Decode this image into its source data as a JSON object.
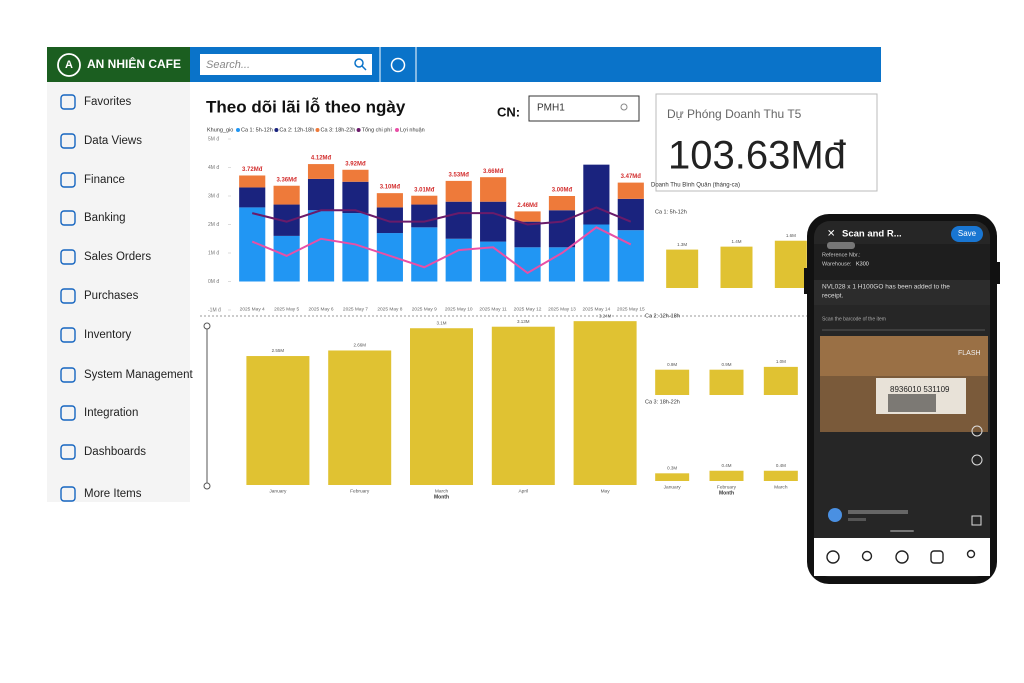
{
  "header": {
    "brand": "AN NHIÊN CAFE",
    "search_placeholder": "Search..."
  },
  "sidebar": [
    "Favorites",
    "Data Views",
    "Finance",
    "Banking",
    "Sales Orders",
    "Purchases",
    "Inventory",
    "System Management",
    "Integration",
    "Dashboards",
    "More Items"
  ],
  "dashboard": {
    "title": "Theo dõi lãi lỗ theo ngày",
    "branch_label": "CN:",
    "branch_value": "PMH1"
  },
  "card": {
    "title": "Dự Phóng Doanh Thu T5",
    "value": "103.63Mđ"
  },
  "chart_data": [
    {
      "type": "bar",
      "stacked": true,
      "legend_title": "Khung_gio",
      "categories": [
        "2025 May 4",
        "2025 May 5",
        "2025 May 6",
        "2025 May 7",
        "2025 May 8",
        "2025 May 9",
        "2025 May 10",
        "2025 May 11",
        "2025 May 12",
        "2025 May 13",
        "2025 May 14",
        "2025 May 15"
      ],
      "series": [
        {
          "name": "Ca 1: 5h-12h",
          "color": "#2196f3",
          "values": [
            2.6,
            1.6,
            2.5,
            2.4,
            1.7,
            1.9,
            1.5,
            1.4,
            1.2,
            1.2,
            2.0,
            1.8
          ]
        },
        {
          "name": "Ca 2: 12h-18h",
          "color": "#1a237e",
          "values": [
            0.7,
            1.1,
            1.1,
            1.1,
            0.9,
            0.8,
            1.3,
            1.4,
            0.9,
            1.3,
            2.1,
            1.1
          ]
        },
        {
          "name": "Ca 3: 18h-22h",
          "color": "#ee7a3a",
          "values": [
            0.42,
            0.66,
            0.52,
            0.42,
            0.5,
            0.31,
            0.73,
            0.86,
            0.36,
            0.5,
            0,
            0.57
          ]
        },
        {
          "name": "Tổng chi phí",
          "type": "line",
          "color": "#6a1b6a",
          "values": [
            2.4,
            2.1,
            2.5,
            2.5,
            2.1,
            2.1,
            2.4,
            2.4,
            2.0,
            2.1,
            2.6,
            2.1
          ]
        },
        {
          "name": "Lợi nhuận",
          "type": "line",
          "color": "#e84fa6",
          "values": [
            1.4,
            0.9,
            1.5,
            1.3,
            0.9,
            0.5,
            1.1,
            1.2,
            0.3,
            1.0,
            1.9,
            1.3
          ]
        }
      ],
      "total_labels": [
        "3.72Mđ",
        "3.36Mđ",
        "4.12Mđ",
        "3.92Mđ",
        "3.10Mđ",
        "3.01Mđ",
        "3.53Mđ",
        "3.66Mđ",
        "2.46Mđ",
        "3.00Mđ",
        null,
        "3.47Mđ"
      ],
      "ylim": [
        -1,
        5
      ],
      "yticks": [
        {
          "value": -1,
          "label": "-1M đ"
        },
        {
          "value": 0,
          "label": "0M đ"
        },
        {
          "value": 1,
          "label": "1M đ"
        },
        {
          "value": 2,
          "label": "2M đ"
        },
        {
          "value": 3,
          "label": "3M đ"
        },
        {
          "value": 4,
          "label": "4M đ"
        },
        {
          "value": 5,
          "label": "5M đ"
        }
      ]
    },
    {
      "type": "bar",
      "x_label": "Month",
      "color": "#e0c232",
      "categories": [
        "January",
        "February",
        "March",
        "April",
        "May"
      ],
      "values": [
        2.55,
        2.66,
        3.1,
        3.13,
        3.24
      ],
      "value_labels": [
        "2.55M",
        "2.66M",
        "3.1M",
        "3.13M",
        "3.24M"
      ],
      "ylim": [
        0,
        3.5
      ]
    },
    {
      "type": "bar",
      "title": "Doanh Thu Bình Quân (tháng-ca)",
      "subtitle": "Ca 1: 5h-12h",
      "color": "#e0c232",
      "categories": [
        null,
        null,
        null
      ],
      "values": [
        1.3,
        1.4,
        1.6
      ],
      "value_labels": [
        "1.3M",
        "1.4M",
        "1.6M"
      ],
      "ylim": [
        0,
        2.2
      ]
    },
    {
      "type": "bar",
      "subtitle": "Ca 2: 12h-18h",
      "color": "#e0c232",
      "categories": [
        null,
        null,
        null
      ],
      "values": [
        0.9,
        0.9,
        1.0
      ],
      "value_labels": [
        "0.9M",
        "0.9M",
        "1.0M"
      ],
      "ylim": [
        0,
        1.6
      ]
    },
    {
      "type": "bar",
      "subtitle": "Ca 3: 18h-22h",
      "x_label": "Month",
      "color": "#e0c232",
      "categories": [
        "January",
        "February",
        "March"
      ],
      "values": [
        0.3,
        0.4,
        0.4
      ],
      "value_labels": [
        "0.3M",
        "0.4M",
        "0.4M"
      ],
      "ylim": [
        0,
        1.6
      ]
    }
  ],
  "phone": {
    "title": "Scan and R...",
    "save": "Save",
    "reference": "Reference Nbr.:",
    "warehouse_label": "Warehouse:",
    "warehouse": "K300",
    "message": [
      "NVL028 x 1 H100GO has been added to the",
      "receipt."
    ],
    "scan_hint": "Scan the barcode of the item",
    "flash": "FLASH",
    "barcode": "8936010 531109"
  }
}
